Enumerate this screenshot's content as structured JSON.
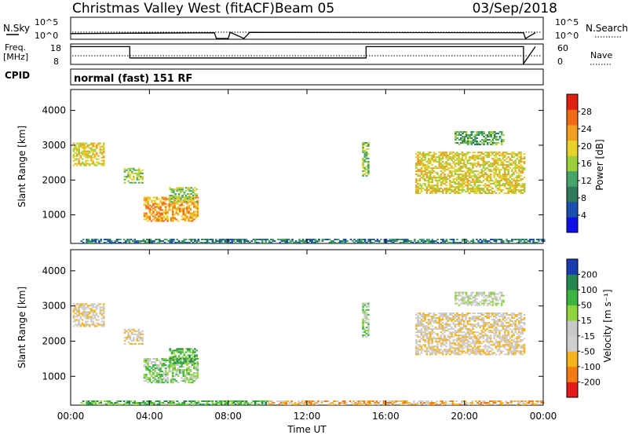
{
  "header": {
    "title": "Christmas Valley West (fitACF)",
    "beam": "Beam 05",
    "date": "03/Sep/2018",
    "mode": "normal (fast) 151 RF"
  },
  "labels": {
    "nsky": "N.Sky",
    "nsearch": "N.Search",
    "freq": "Freq.",
    "freq_unit": "[MHz]",
    "nave": "Nave",
    "cpid": "CPID",
    "slant_range": "Slant Range [km]",
    "time": "Time UT",
    "power_bar": "Power [dB]",
    "velocity_bar": "Velocity [m s⁻¹]"
  },
  "noise_axis": {
    "left": [
      "10^5",
      "10^0"
    ],
    "right": [
      "10^5",
      "10^0"
    ]
  },
  "freq_axis": {
    "left": [
      "18",
      "8"
    ],
    "right": [
      "60",
      "0"
    ]
  },
  "colors": {
    "power_scale": [
      "#1010e6",
      "#1d4fb0",
      "#2e7a5a",
      "#48a56a",
      "#9ecf3c",
      "#e8d12a",
      "#f0a020",
      "#f06a18",
      "#e02010"
    ],
    "velocity_scale": [
      "#e41a1c",
      "#f37b14",
      "#f6b21b",
      "#cfcfcf",
      "#c8c8c8",
      "#8fd43f",
      "#3bb540",
      "#25864e",
      "#1b3cb0"
    ]
  },
  "chart_data": [
    {
      "type": "line",
      "title": "N.Sky / N.Search",
      "x_range": [
        "00:00",
        "00:00"
      ],
      "series": [
        {
          "name": "N.Sky",
          "values": [
            [
              0,
              1.2
            ],
            [
              7.3,
              1.4
            ],
            [
              7.4,
              0
            ],
            [
              8.0,
              0
            ],
            [
              8.1,
              1.5
            ],
            [
              8.8,
              0
            ],
            [
              9.1,
              1.5
            ],
            [
              23.0,
              1.4
            ],
            [
              23.1,
              0
            ],
            [
              23.6,
              1.4
            ]
          ]
        },
        {
          "name": "N.Search",
          "values": [
            [
              0,
              1.6
            ],
            [
              24,
              1.6
            ]
          ]
        }
      ],
      "ylim_log": [
        0,
        5
      ]
    },
    {
      "type": "line",
      "title": "Freq. / Nave",
      "series": [
        {
          "name": "Freq.",
          "values": [
            [
              0,
              17
            ],
            [
              3.0,
              17
            ],
            [
              3.0,
              11
            ],
            [
              15.0,
              11
            ],
            [
              15.0,
              17
            ],
            [
              23.0,
              17
            ],
            [
              23.0,
              8
            ],
            [
              23.6,
              17
            ]
          ]
        },
        {
          "name": "Nave",
          "values": [
            [
              0,
              12
            ],
            [
              24,
              12
            ]
          ]
        }
      ],
      "ylim_left": [
        8,
        18
      ],
      "ylim_right": [
        0,
        60
      ]
    },
    {
      "type": "heatmap",
      "title": "Power",
      "ylabel": "Slant Range [km]",
      "xlabel": "",
      "x_ticks": [
        "00:00",
        "04:00",
        "08:00",
        "12:00",
        "16:00",
        "20:00",
        "00:00"
      ],
      "y_ticks": [
        "1000",
        "2000",
        "3000",
        "4000"
      ],
      "xlim": [
        0,
        24
      ],
      "ylim": [
        180,
        4600
      ],
      "colorbar": {
        "label": "Power [dB]",
        "ticks": [
          "4",
          "8",
          "12",
          "16",
          "20",
          "24",
          "28"
        ],
        "range": [
          0,
          30
        ]
      },
      "regions": [
        {
          "t0": 0.1,
          "t1": 1.7,
          "r0": 2400,
          "r1": 3050,
          "level": 5
        },
        {
          "t0": 2.7,
          "t1": 3.6,
          "r0": 1900,
          "r1": 2350,
          "level": 4
        },
        {
          "t0": 3.7,
          "t1": 6.4,
          "r0": 800,
          "r1": 1500,
          "level": 6
        },
        {
          "t0": 5.0,
          "t1": 6.4,
          "r0": 1350,
          "r1": 1800,
          "level": 4
        },
        {
          "t0": 0.5,
          "t1": 24,
          "r0": 180,
          "r1": 300,
          "level": 2
        },
        {
          "t0": 14.8,
          "t1": 15.1,
          "r0": 2100,
          "r1": 3050,
          "level": 4
        },
        {
          "t0": 17.5,
          "t1": 23.0,
          "r0": 1600,
          "r1": 2800,
          "level": 5
        },
        {
          "t0": 19.5,
          "t1": 22.0,
          "r0": 3000,
          "r1": 3400,
          "level": 3
        }
      ]
    },
    {
      "type": "heatmap",
      "title": "Velocity",
      "ylabel": "Slant Range [km]",
      "xlabel": "Time UT",
      "x_ticks": [
        "00:00",
        "04:00",
        "08:00",
        "12:00",
        "16:00",
        "20:00",
        "00:00"
      ],
      "y_ticks": [
        "1000",
        "2000",
        "3000",
        "4000"
      ],
      "xlim": [
        0,
        24
      ],
      "ylim": [
        180,
        4600
      ],
      "colorbar": {
        "label": "Velocity [m s⁻¹]",
        "ticks": [
          "-200",
          "-100",
          "-50",
          "-15",
          "15",
          "50",
          "100",
          "200"
        ],
        "range": [
          -250,
          250
        ]
      },
      "regions": [
        {
          "t0": 0.1,
          "t1": 1.7,
          "r0": 2400,
          "r1": 3050,
          "level": 3
        },
        {
          "t0": 2.7,
          "t1": 3.6,
          "r0": 1900,
          "r1": 2350,
          "level": 3
        },
        {
          "t0": 3.7,
          "t1": 6.4,
          "r0": 800,
          "r1": 1500,
          "level": 5
        },
        {
          "t0": 5.0,
          "t1": 6.4,
          "r0": 1350,
          "r1": 1800,
          "level": 6
        },
        {
          "t0": 0.5,
          "t1": 10.0,
          "r0": 180,
          "r1": 300,
          "level": 6
        },
        {
          "t0": 10.0,
          "t1": 24,
          "r0": 180,
          "r1": 300,
          "level": 2
        },
        {
          "t0": 14.8,
          "t1": 15.1,
          "r0": 2100,
          "r1": 3050,
          "level": 5
        },
        {
          "t0": 17.5,
          "t1": 23.0,
          "r0": 1600,
          "r1": 2800,
          "level": 3
        },
        {
          "t0": 19.5,
          "t1": 22.0,
          "r0": 3000,
          "r1": 3400,
          "level": 4
        }
      ]
    }
  ]
}
